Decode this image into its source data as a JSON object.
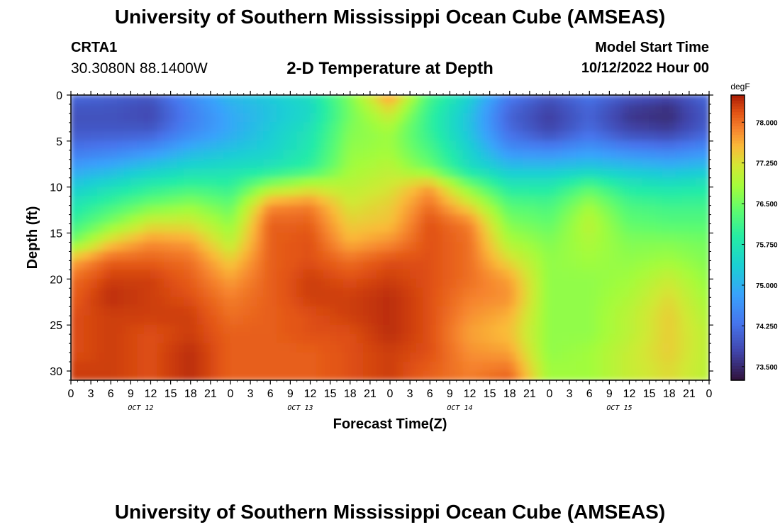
{
  "header": {
    "title": "University of Southern Mississippi Ocean Cube (AMSEAS)",
    "station": "CRTA1",
    "coords": "30.3080N  88.1400W",
    "subtitle": "2-D Temperature at Depth",
    "model_label": "Model Start Time",
    "model_value": "10/12/2022 Hour 00"
  },
  "footer": {
    "title": "University of Southern Mississippi Ocean Cube (AMSEAS)"
  },
  "chart_data": {
    "type": "heatmap",
    "title": "2-D Temperature at Depth",
    "xlabel": "Forecast Time(Z)",
    "ylabel": "Depth (ft)",
    "x_hours_range": [
      0,
      96
    ],
    "y_range": [
      0,
      31
    ],
    "y_ticks": [
      "0",
      "5",
      "10",
      "15",
      "20",
      "25",
      "30"
    ],
    "x_tick_labels": [
      "0",
      "3",
      "6",
      "9",
      "12",
      "15",
      "18",
      "21",
      "0",
      "3",
      "6",
      "9",
      "12",
      "15",
      "18",
      "21",
      "0",
      "3",
      "6",
      "9",
      "12",
      "15",
      "18",
      "21",
      "0",
      "3",
      "6",
      "9",
      "12",
      "15",
      "18",
      "21",
      "0"
    ],
    "day_labels": [
      "OCT 12",
      "OCT 13",
      "OCT 14",
      "OCT 15"
    ],
    "colorbar": {
      "unit": "degF",
      "min": 73.25,
      "max": 78.5,
      "ticks": [
        "78.000",
        "77.250",
        "76.500",
        "75.750",
        "75.000",
        "74.250",
        "73.500"
      ],
      "tick_values": [
        78.0,
        77.25,
        76.5,
        75.75,
        75.0,
        74.25,
        73.5
      ]
    },
    "depth_levels": [
      0,
      2,
      4,
      6,
      8,
      10,
      12,
      14,
      16,
      18,
      20,
      22,
      24,
      26,
      28,
      30,
      31
    ],
    "time_hours": [
      0,
      6,
      12,
      18,
      24,
      30,
      36,
      42,
      48,
      54,
      60,
      66,
      72,
      78,
      84,
      90,
      96
    ],
    "temperature_degF": [
      [
        74.2,
        74.1,
        74.0,
        74.6,
        75.1,
        75.3,
        75.6,
        76.6,
        77.8,
        76.2,
        75.4,
        74.4,
        74.0,
        74.3,
        74.0,
        73.8,
        74.2
      ],
      [
        73.9,
        73.9,
        73.8,
        74.4,
        74.9,
        75.2,
        75.5,
        76.5,
        77.2,
        76.0,
        75.2,
        74.1,
        73.7,
        74.1,
        73.6,
        73.5,
        74.0
      ],
      [
        74.0,
        74.0,
        74.0,
        74.5,
        74.9,
        75.3,
        75.7,
        76.6,
        76.8,
        76.0,
        75.2,
        74.2,
        73.8,
        74.2,
        73.8,
        73.7,
        74.1
      ],
      [
        74.3,
        74.4,
        74.6,
        75.0,
        75.2,
        75.4,
        75.8,
        76.7,
        76.8,
        76.2,
        75.4,
        74.6,
        74.5,
        74.7,
        74.5,
        74.4,
        74.6
      ],
      [
        74.8,
        75.0,
        75.3,
        75.5,
        75.6,
        75.7,
        76.0,
        76.8,
        77.0,
        76.5,
        75.6,
        75.2,
        75.2,
        75.3,
        75.2,
        75.1,
        75.2
      ],
      [
        75.3,
        75.6,
        75.9,
        76.1,
        76.0,
        76.8,
        77.1,
        77.0,
        77.2,
        77.7,
        76.6,
        75.8,
        75.8,
        76.3,
        75.8,
        75.7,
        75.8
      ],
      [
        75.7,
        76.1,
        76.5,
        76.7,
        76.4,
        77.8,
        77.9,
        77.2,
        77.4,
        78.0,
        77.3,
        76.3,
        76.2,
        76.8,
        76.2,
        76.1,
        76.1
      ],
      [
        76.0,
        76.6,
        77.2,
        77.2,
        76.7,
        78.1,
        78.1,
        77.4,
        77.5,
        78.2,
        77.9,
        76.6,
        76.4,
        77.0,
        76.4,
        76.3,
        76.3
      ],
      [
        76.5,
        77.4,
        77.8,
        77.7,
        77.0,
        78.1,
        78.2,
        77.6,
        77.8,
        78.2,
        78.0,
        76.9,
        76.6,
        76.9,
        76.6,
        76.6,
        76.5
      ],
      [
        77.6,
        78.1,
        78.1,
        78.0,
        77.4,
        78.1,
        78.2,
        78.0,
        78.2,
        78.2,
        78.0,
        77.3,
        76.7,
        76.8,
        76.7,
        76.8,
        76.6
      ],
      [
        78.0,
        78.3,
        78.3,
        78.1,
        77.7,
        78.1,
        78.3,
        78.2,
        78.3,
        78.2,
        78.0,
        77.7,
        76.7,
        76.7,
        76.8,
        77.1,
        76.7
      ],
      [
        78.1,
        78.4,
        78.3,
        78.2,
        77.9,
        78.1,
        78.3,
        78.3,
        78.4,
        78.2,
        77.9,
        77.8,
        76.7,
        76.7,
        76.9,
        77.3,
        76.8
      ],
      [
        78.2,
        78.3,
        78.3,
        78.3,
        78.0,
        78.1,
        78.2,
        78.3,
        78.4,
        78.2,
        77.8,
        77.6,
        76.7,
        76.7,
        77.0,
        77.4,
        76.9
      ],
      [
        78.2,
        78.3,
        78.2,
        78.3,
        78.1,
        78.1,
        78.2,
        78.2,
        78.4,
        78.2,
        77.7,
        77.5,
        76.7,
        76.7,
        77.0,
        77.4,
        77.0
      ],
      [
        78.2,
        78.3,
        78.2,
        78.4,
        78.1,
        78.1,
        78.1,
        78.2,
        78.3,
        78.2,
        77.8,
        77.7,
        76.7,
        76.8,
        77.1,
        77.4,
        77.0
      ],
      [
        78.3,
        78.3,
        78.2,
        78.4,
        78.1,
        78.1,
        78.1,
        78.2,
        78.3,
        78.1,
        77.9,
        78.0,
        76.8,
        76.8,
        77.1,
        77.3,
        77.0
      ],
      [
        78.3,
        78.3,
        78.2,
        78.4,
        78.1,
        78.1,
        78.1,
        78.2,
        78.3,
        78.1,
        77.9,
        78.1,
        76.8,
        76.8,
        77.1,
        77.3,
        77.0
      ]
    ]
  },
  "colors": {
    "axis": "#000000",
    "text": "#000000",
    "background": "#ffffff"
  }
}
